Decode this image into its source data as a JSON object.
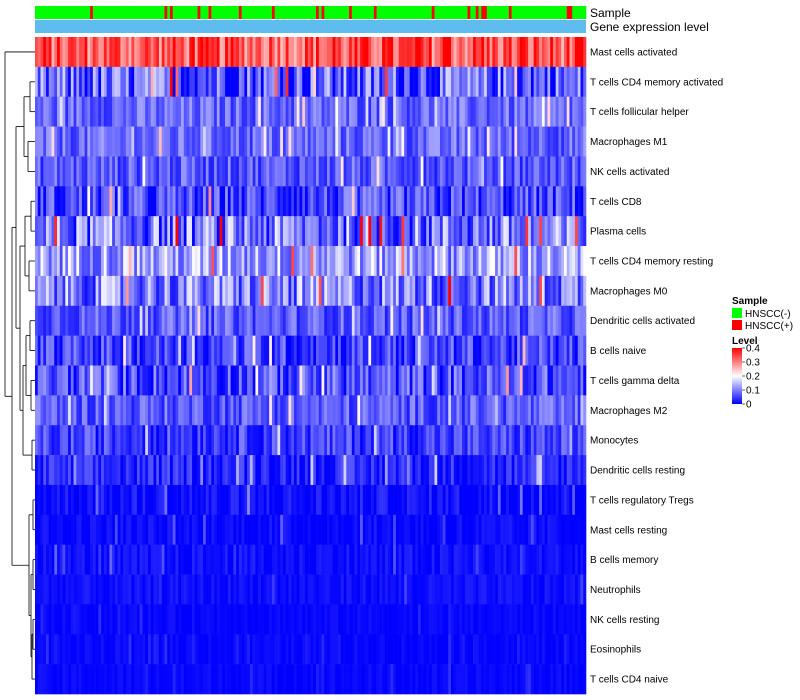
{
  "chart_data": {
    "type": "heatmap",
    "title": "",
    "annotation_tracks": [
      {
        "label": "Sample",
        "categories": [
          "HNSCC(-)",
          "HNSCC(+)"
        ],
        "dominant": "HNSCC(-)"
      },
      {
        "label": "Gene expression level"
      }
    ],
    "rows": [
      {
        "name": "Mast cells activated",
        "mean": 0.33,
        "spread": 0.08
      },
      {
        "name": "T cells CD4 memory activated",
        "mean": 0.07,
        "spread": 0.1
      },
      {
        "name": "T cells follicular helper",
        "mean": 0.08,
        "spread": 0.05
      },
      {
        "name": "Macrophages M1",
        "mean": 0.08,
        "spread": 0.05
      },
      {
        "name": "NK cells activated",
        "mean": 0.07,
        "spread": 0.05
      },
      {
        "name": "T cells CD8",
        "mean": 0.05,
        "spread": 0.07
      },
      {
        "name": "Plasma cells",
        "mean": 0.09,
        "spread": 0.1
      },
      {
        "name": "T cells CD4 memory resting",
        "mean": 0.13,
        "spread": 0.08
      },
      {
        "name": "Macrophages M0",
        "mean": 0.1,
        "spread": 0.09
      },
      {
        "name": "Dendritic cells activated",
        "mean": 0.07,
        "spread": 0.05
      },
      {
        "name": "B cells naive",
        "mean": 0.05,
        "spread": 0.06
      },
      {
        "name": "T cells gamma delta",
        "mean": 0.06,
        "spread": 0.07
      },
      {
        "name": "Macrophages M2",
        "mean": 0.07,
        "spread": 0.05
      },
      {
        "name": "Monocytes",
        "mean": 0.05,
        "spread": 0.05
      },
      {
        "name": "Dendritic cells resting",
        "mean": 0.03,
        "spread": 0.04
      },
      {
        "name": "T cells regulatory  Tregs",
        "mean": 0.01,
        "spread": 0.03
      },
      {
        "name": "Mast cells resting",
        "mean": 0.005,
        "spread": 0.02
      },
      {
        "name": "B cells memory",
        "mean": 0.01,
        "spread": 0.02
      },
      {
        "name": "Neutrophils",
        "mean": 0.01,
        "spread": 0.015
      },
      {
        "name": "NK cells resting",
        "mean": 0.005,
        "spread": 0.01
      },
      {
        "name": "Eosinophils",
        "mean": 0.005,
        "spread": 0.01
      },
      {
        "name": "T cells CD4 naive",
        "mean": 0.005,
        "spread": 0.01
      }
    ],
    "n_samples": 200,
    "color_scale": {
      "low": "#0000ff",
      "mid": "#ffffff",
      "high": "#ff0000",
      "min": 0,
      "max": 0.4,
      "ticks": [
        0.4,
        0.3,
        0.2,
        0.1,
        0
      ]
    },
    "legend": {
      "position": "right",
      "sample_title": "Sample",
      "sample_entries": [
        {
          "label": "HNSCC(-)",
          "color": "#00ff00"
        },
        {
          "label": "HNSCC(+)",
          "color": "#ff0000"
        }
      ],
      "level_title": "Level"
    },
    "colors": {
      "negative": "#00ff00",
      "positive": "#ff0000",
      "expression_track": "#5fbcee"
    },
    "row_dendrogram": true
  }
}
